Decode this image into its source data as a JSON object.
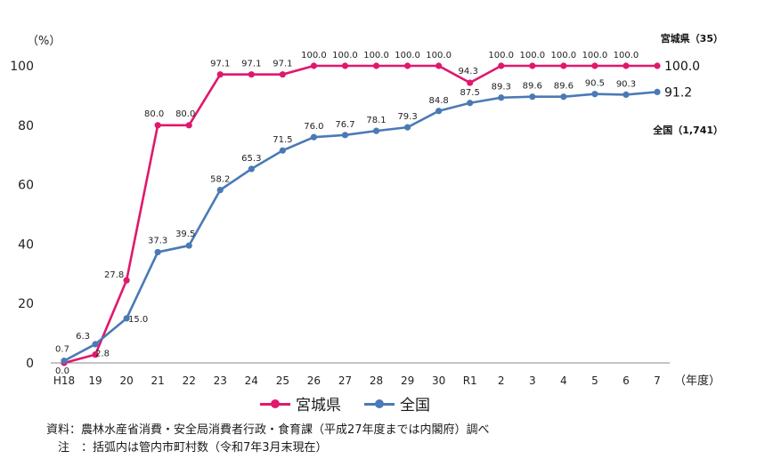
{
  "chart_data": {
    "type": "line",
    "unit_label": "（%）",
    "x_unit_label": "（年度）",
    "categories": [
      "H18",
      "19",
      "20",
      "21",
      "22",
      "23",
      "24",
      "25",
      "26",
      "27",
      "28",
      "29",
      "30",
      "R1",
      "2",
      "3",
      "4",
      "5",
      "6",
      "7"
    ],
    "ylim": [
      0,
      100
    ],
    "yticks": [
      0,
      20,
      40,
      60,
      80,
      100
    ],
    "grid": false,
    "legend_position": "bottom-center",
    "series": [
      {
        "name": "宮城県",
        "color": "#e0186c",
        "end_label": "宮城県（35）",
        "end_value_label": "100.0",
        "values": [
          0.0,
          2.8,
          27.8,
          80.0,
          80.0,
          97.1,
          97.1,
          97.1,
          100.0,
          100.0,
          100.0,
          100.0,
          100.0,
          94.3,
          100.0,
          100.0,
          100.0,
          100.0,
          100.0,
          100.0
        ],
        "labels": [
          "0.0",
          "2.8",
          "27.8",
          "80.0",
          "80.0",
          "97.1",
          "97.1",
          "97.1",
          "100.0",
          "100.0",
          "100.0",
          "100.0",
          "100.0",
          "94.3",
          "100.0",
          "100.0",
          "100.0",
          "100.0",
          "100.0",
          ""
        ]
      },
      {
        "name": "全国",
        "color": "#4a7ab5",
        "end_label": "全国（1,741）",
        "end_value_label": "91.2",
        "values": [
          0.7,
          6.3,
          15.0,
          37.3,
          39.5,
          58.2,
          65.3,
          71.5,
          76.0,
          76.7,
          78.1,
          79.3,
          84.8,
          87.5,
          89.3,
          89.6,
          89.6,
          90.5,
          90.3,
          91.2
        ],
        "labels": [
          "0.7",
          "6.3",
          "15.0",
          "37.3",
          "39.5",
          "58.2",
          "65.3",
          "71.5",
          "76.0",
          "76.7",
          "78.1",
          "79.3",
          "84.8",
          "87.5",
          "89.3",
          "89.6",
          "89.6",
          "90.5",
          "90.3",
          ""
        ]
      }
    ]
  },
  "notes": {
    "source": "資料：農林水産省消費・安全局消費者行政・食育課（平成27年度までは内閣府）調べ",
    "note": "　注　：括弧内は管内市町村数（令和7年3月末現在）"
  }
}
